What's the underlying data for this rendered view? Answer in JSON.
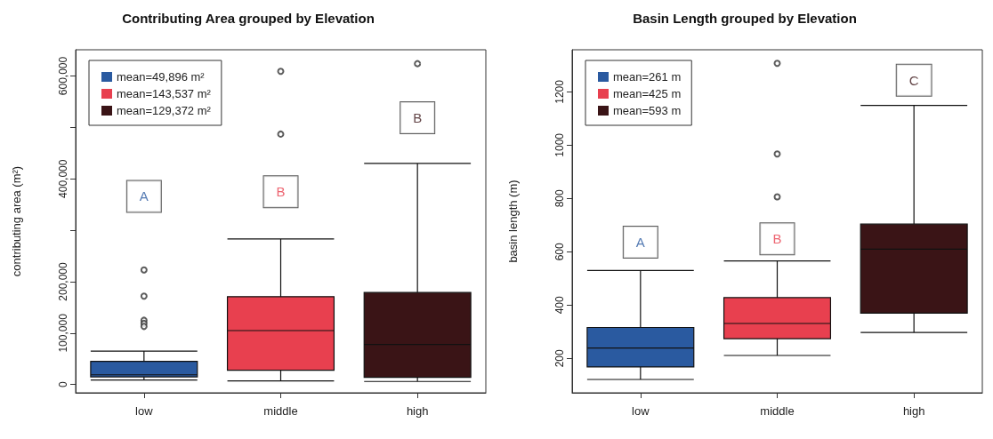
{
  "chart_data": [
    {
      "type": "box",
      "title": "Contributing Area grouped by Elevation",
      "ylabel": "contributing area (m²)",
      "categories": [
        "low",
        "middle",
        "high"
      ],
      "series": [
        {
          "name": "mean=49,896 m²",
          "color": "#2a5aa0",
          "boxes": [
            {
              "low": 9000,
              "q1": 15000,
              "median": 19000,
              "q3": 45000,
              "high": 65000,
              "outliers": [
                223000,
                172000,
                125000,
                119000,
                113000
              ]
            },
            null,
            null
          ]
        },
        {
          "name": "mean=143,537 m²",
          "color": "#e8404f",
          "boxes": [
            null,
            {
              "low": 7000,
              "q1": 28000,
              "median": 105000,
              "q3": 171000,
              "high": 283000,
              "outliers": [
                487000,
                609000
              ]
            },
            null
          ]
        },
        {
          "name": "mean=129,372 m²",
          "color": "#3a1416",
          "boxes": [
            null,
            null,
            {
              "low": 6000,
              "q1": 14000,
              "median": 78000,
              "q3": 179000,
              "high": 430000,
              "outliers": [
                624000
              ]
            }
          ]
        }
      ],
      "ylim": [
        -16000,
        651000
      ],
      "yticks": [
        0,
        {
          "value": 100000,
          "label": "100,000"
        },
        {
          "value": 200000,
          "label": "200,000"
        },
        {
          "value": 300000,
          "label": null
        },
        {
          "value": 400000,
          "label": "400,000"
        },
        {
          "value": 500000,
          "label": null
        },
        {
          "value": 600000,
          "label": "600,000"
        }
      ],
      "annotations": [
        {
          "text": "A",
          "x": "low",
          "y": 366000
        },
        {
          "text": "B",
          "x": "middle",
          "y": 375000
        },
        {
          "text": "B",
          "x": "high",
          "y": 519000
        }
      ],
      "legend": "top left",
      "grid": false
    },
    {
      "type": "box",
      "title": "Basin Length grouped by Elevation",
      "ylabel": "basin length (m)",
      "categories": [
        "low",
        "middle",
        "high"
      ],
      "series": [
        {
          "name": "mean=261 m",
          "color": "#2a5aa0",
          "boxes": [
            {
              "low": 121,
              "q1": 168,
              "median": 239,
              "q3": 316,
              "high": 530
            },
            null,
            null
          ]
        },
        {
          "name": "mean=425 m",
          "color": "#e8404f",
          "boxes": [
            null,
            {
              "low": 211,
              "q1": 274,
              "median": 331,
              "q3": 428,
              "high": 566,
              "outliers": [
                806,
                967,
                1307
              ]
            },
            null
          ]
        },
        {
          "name": "mean=593 m",
          "color": "#3a1416",
          "boxes": [
            null,
            null,
            {
              "low": 297,
              "q1": 370,
              "median": 610,
              "q3": 704,
              "high": 1149
            }
          ]
        }
      ],
      "ylim": [
        71,
        1358
      ],
      "yticks": [
        200,
        400,
        600,
        800,
        1000,
        1200
      ],
      "annotations": [
        {
          "text": "A",
          "x": "low",
          "y": 636
        },
        {
          "text": "B",
          "x": "middle",
          "y": 649
        },
        {
          "text": "C",
          "x": "high",
          "y": 1244
        }
      ],
      "legend": "top left",
      "grid": false
    }
  ]
}
